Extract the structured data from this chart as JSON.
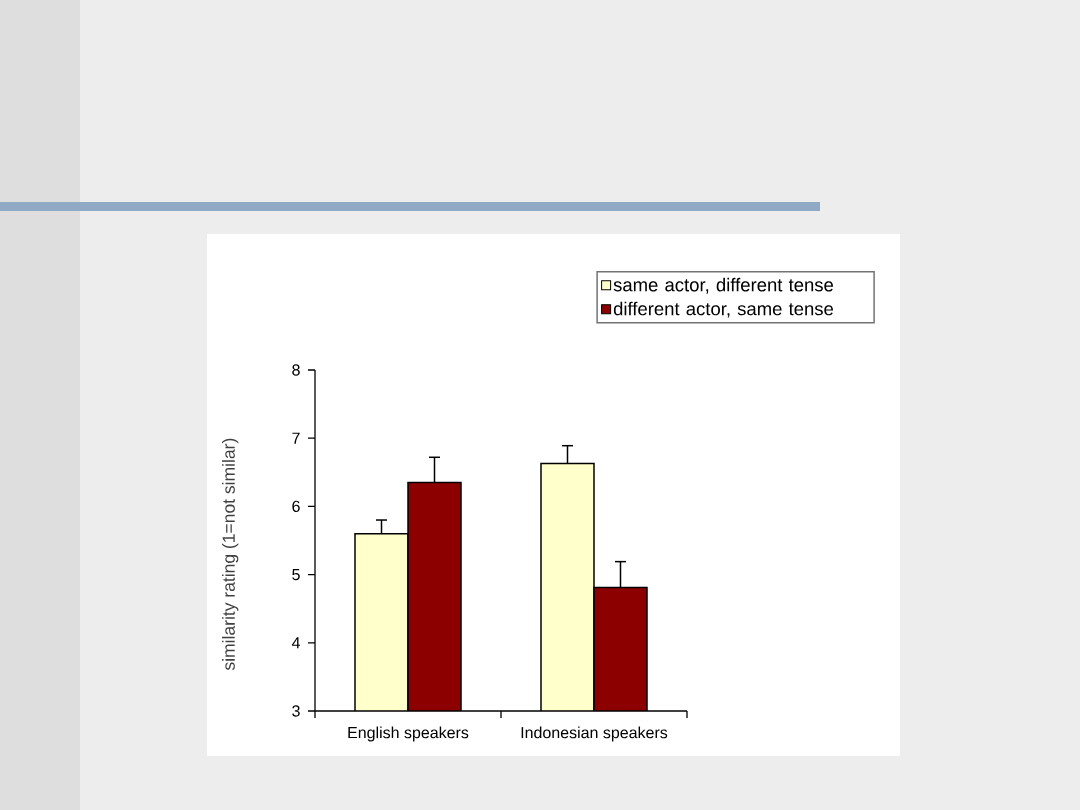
{
  "chart_data": {
    "type": "bar",
    "categories": [
      "English speakers",
      "Indonesian speakers"
    ],
    "ylabel": "similarity rating (1=not similar)",
    "ylim": [
      3,
      8
    ],
    "yticks": [
      3,
      4,
      5,
      6,
      7,
      8
    ],
    "legend": "top right",
    "series": [
      {
        "name": "same actor, different tense",
        "color": "#ffffcc",
        "values": [
          5.6,
          6.63
        ],
        "errors": [
          [
            5.6,
            5.8
          ],
          [
            6.63,
            6.89
          ]
        ]
      },
      {
        "name": "different actor, same tense",
        "color": "#8c0000",
        "values": [
          6.35,
          4.81
        ],
        "errors": [
          [
            6.35,
            6.72
          ],
          [
            4.81,
            5.19
          ]
        ]
      }
    ]
  }
}
